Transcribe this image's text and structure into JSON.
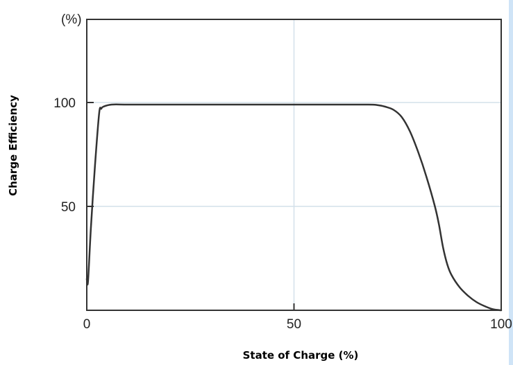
{
  "chart_data": {
    "type": "line",
    "xlabel": "State of Charge (%)",
    "ylabel": "Charge Efficiency",
    "y_unit": "(%)",
    "xlim": [
      0,
      100
    ],
    "ylim": [
      0,
      140
    ],
    "x_ticks": [
      0,
      50,
      100
    ],
    "y_ticks": [
      50,
      100
    ],
    "grid": true,
    "colors": {
      "line": "#333333",
      "grid": "#d3e0ea",
      "frame": "#333333",
      "background": "#ffffff",
      "side_bar": "#cfe4f7"
    },
    "series": [
      {
        "x": [
          0,
          0.3,
          1,
          2,
          3,
          3.5,
          4,
          6,
          10,
          20,
          30,
          40,
          50,
          60,
          68,
          70,
          72,
          74,
          76,
          78,
          80,
          82,
          84,
          85,
          86,
          87,
          88,
          90,
          92,
          94,
          96,
          98,
          100
        ],
        "values": [
          15,
          14,
          40,
          70,
          95,
          97,
          98,
          99,
          99,
          99,
          99,
          99,
          99,
          99,
          99,
          98.8,
          98,
          96.5,
          93,
          86,
          76,
          64,
          50,
          41,
          30,
          22,
          17,
          11,
          7,
          4,
          2,
          0.5,
          0
        ]
      }
    ]
  }
}
